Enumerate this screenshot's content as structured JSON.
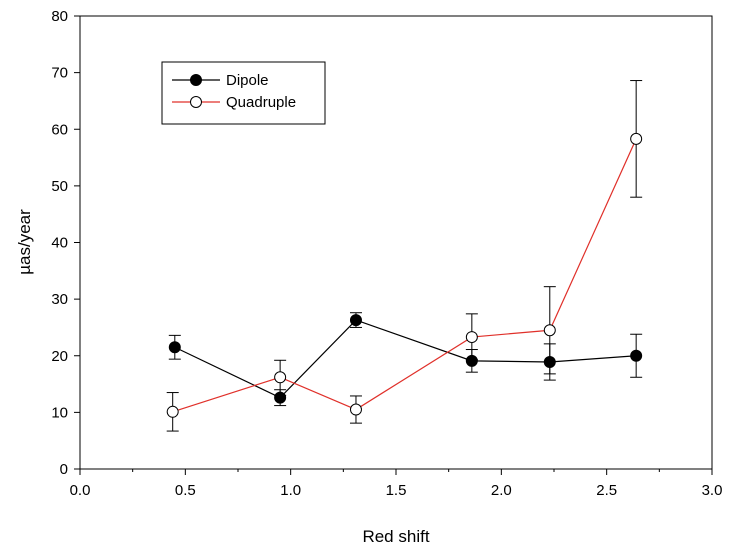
{
  "chart_data": {
    "type": "scatter",
    "xlabel": "Red shift",
    "ylabel": "µas/year",
    "xlim": [
      0.0,
      3.0
    ],
    "ylim": [
      0,
      80
    ],
    "xticks": [
      "0.0",
      "0.5",
      "1.0",
      "1.5",
      "2.0",
      "2.5",
      "3.0"
    ],
    "yticks": [
      "0",
      "10",
      "20",
      "30",
      "40",
      "50",
      "60",
      "70",
      "80"
    ],
    "legend_position": "top-left",
    "series": [
      {
        "name": "Dipole",
        "color": "#000000",
        "marker": "filled-circle",
        "points": [
          {
            "x": 0.45,
            "y": 21.5,
            "err_lo": 19.4,
            "err_hi": 23.6
          },
          {
            "x": 0.95,
            "y": 12.6,
            "err_lo": 11.2,
            "err_hi": 14.0
          },
          {
            "x": 1.31,
            "y": 26.3,
            "err_lo": 25.0,
            "err_hi": 27.6
          },
          {
            "x": 1.86,
            "y": 19.1,
            "err_lo": 17.1,
            "err_hi": 21.1
          },
          {
            "x": 2.23,
            "y": 18.9,
            "err_lo": 15.7,
            "err_hi": 22.1
          },
          {
            "x": 2.64,
            "y": 20.0,
            "err_lo": 16.2,
            "err_hi": 23.8
          }
        ]
      },
      {
        "name": "Quadruple",
        "color": "#e0302a",
        "marker": "open-circle",
        "points": [
          {
            "x": 0.44,
            "y": 10.1,
            "err_lo": 6.7,
            "err_hi": 13.5
          },
          {
            "x": 0.95,
            "y": 16.2,
            "err_lo": 13.0,
            "err_hi": 19.2
          },
          {
            "x": 1.31,
            "y": 10.5,
            "err_lo": 8.1,
            "err_hi": 12.9
          },
          {
            "x": 1.86,
            "y": 23.3,
            "err_lo": 19.3,
            "err_hi": 27.4
          },
          {
            "x": 2.23,
            "y": 24.5,
            "err_lo": 16.8,
            "err_hi": 32.2
          },
          {
            "x": 2.64,
            "y": 58.3,
            "err_lo": 48.0,
            "err_hi": 68.6
          }
        ]
      }
    ]
  }
}
